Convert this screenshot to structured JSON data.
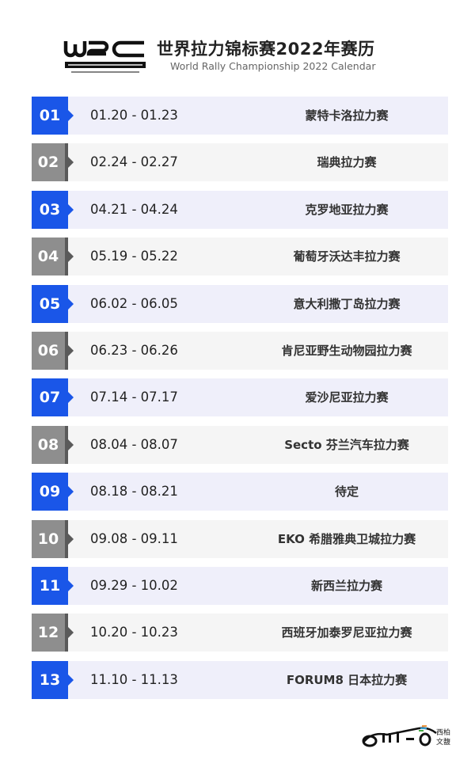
{
  "header": {
    "logo_text": "WRC FIA WORLD RALLY CHAMPIONSHIP",
    "title": "世界拉力锦标赛2022年赛历",
    "subtitle": "World Rally Championship 2022 Calendar"
  },
  "colors": {
    "accent_blue": "#1a56e8",
    "badge_gray": "#8e8e8e",
    "row_odd_bg": "#efeffa",
    "row_even_bg": "#f5f5f5"
  },
  "events": [
    {
      "num": "01",
      "dates": "01.20 - 01.23",
      "name": "蒙特卡洛拉力赛"
    },
    {
      "num": "02",
      "dates": "02.24 - 02.27",
      "name": "瑞典拉力赛"
    },
    {
      "num": "03",
      "dates": "04.21 - 04.24",
      "name": "克罗地亚拉力赛"
    },
    {
      "num": "04",
      "dates": "05.19 - 05.22",
      "name": "葡萄牙沃达丰拉力赛"
    },
    {
      "num": "05",
      "dates": "06.02 - 06.05",
      "name": "意大利撒丁岛拉力赛"
    },
    {
      "num": "06",
      "dates": "06.23 - 06.26",
      "name": "肯尼亚野生动物园拉力赛"
    },
    {
      "num": "07",
      "dates": "07.14 - 07.17",
      "name": "爱沙尼亚拉力赛"
    },
    {
      "num": "08",
      "dates": "08.04 - 08.07",
      "name": "Secto 芬兰汽车拉力赛"
    },
    {
      "num": "09",
      "dates": "08.18 - 08.21",
      "name": "待定"
    },
    {
      "num": "10",
      "dates": "09.08 - 09.11",
      "name": "EKO 希腊雅典卫城拉力赛"
    },
    {
      "num": "11",
      "dates": "09.29 - 10.02",
      "name": "新西兰拉力赛"
    },
    {
      "num": "12",
      "dates": "10.20 - 10.23",
      "name": "西班牙加泰罗尼亚拉力赛"
    },
    {
      "num": "13",
      "dates": "11.10 - 11.13",
      "name": "FORUM8 日本拉力赛"
    }
  ],
  "footer": {
    "watermark_logo": "CHIP-O 西柏文馥"
  }
}
